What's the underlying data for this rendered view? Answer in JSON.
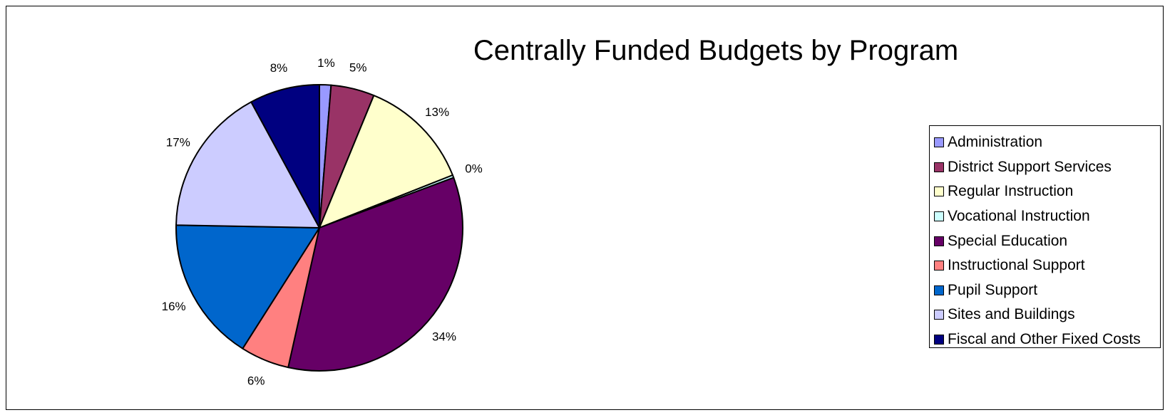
{
  "chart_data": {
    "type": "pie",
    "title": "Centrally Funded Budgets by Program",
    "legend_position": "right",
    "slices": [
      {
        "name": "Administration",
        "value": 1.3,
        "label": "1%",
        "color": "#9999ff"
      },
      {
        "name": "District Support Services",
        "value": 4.9,
        "label": "5%",
        "color": "#993366"
      },
      {
        "name": "Regular Instruction",
        "value": 12.8,
        "label": "13%",
        "color": "#ffffcc"
      },
      {
        "name": "Vocational Instruction",
        "value": 0.3,
        "label": "0%",
        "color": "#ccffff"
      },
      {
        "name": "Special Education",
        "value": 34.2,
        "label": "34%",
        "color": "#660066"
      },
      {
        "name": "Instructional Support",
        "value": 5.5,
        "label": "6%",
        "color": "#ff8080"
      },
      {
        "name": "Pupil Support",
        "value": 16.3,
        "label": "16%",
        "color": "#0066cc"
      },
      {
        "name": "Sites and Buildings",
        "value": 16.8,
        "label": "17%",
        "color": "#ccccff"
      },
      {
        "name": "Fiscal and Other Fixed Costs",
        "value": 7.9,
        "label": "8%",
        "color": "#000080"
      }
    ]
  }
}
